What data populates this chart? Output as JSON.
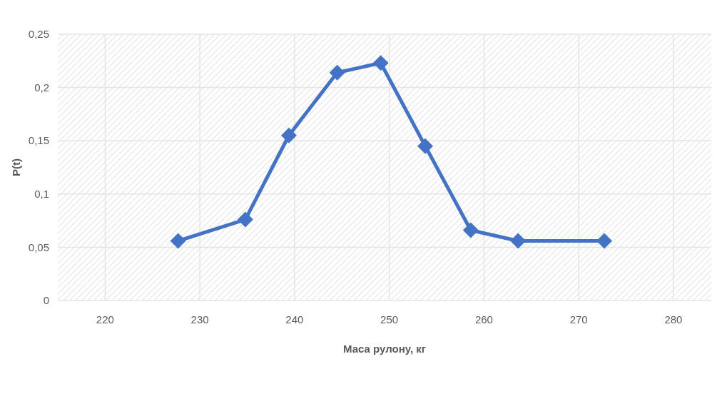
{
  "chart_data": {
    "type": "line",
    "xlabel": "Маса рулону, кг",
    "ylabel": "P(t)",
    "x": [
      227.7,
      234.8,
      239.4,
      244.5,
      249.1,
      253.8,
      258.6,
      263.6,
      272.7
    ],
    "series": [
      {
        "color": "#4472c4",
        "values": [
          0.056,
          0.076,
          0.155,
          0.214,
          0.223,
          0.145,
          0.066,
          0.056,
          0.056
        ]
      }
    ],
    "xlim": [
      215,
      284
    ],
    "xticks": [
      220,
      230,
      240,
      250,
      260,
      270,
      280
    ],
    "ylim": [
      0,
      0.25
    ],
    "yticks": [
      0,
      {
        "value": 0.05,
        "label": "0,05"
      },
      {
        "value": 0.1,
        "label": "0,1"
      },
      {
        "value": 0.15,
        "label": "0,15"
      },
      {
        "value": 0.2,
        "label": "0,2"
      },
      {
        "value": 0.25,
        "label": "0,25"
      }
    ],
    "grid": true,
    "marker": "diamond",
    "line_style": "solid"
  }
}
